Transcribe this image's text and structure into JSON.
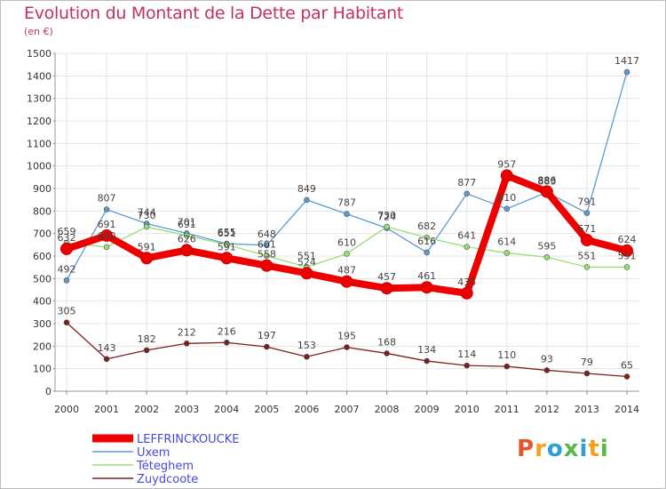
{
  "title": "Evolution du Montant de la Dette par Habitant",
  "subtitle": "(en €)",
  "logo": {
    "letters": [
      "P",
      "r",
      "o",
      "x",
      "i",
      "t",
      "i"
    ],
    "colors": [
      "#e8552a",
      "#f2a01e",
      "#2b9fd9",
      "#57b947",
      "#2b9fd9",
      "#f2a01e",
      "#57b947"
    ]
  },
  "chart_data": {
    "type": "line",
    "x": [
      "2000",
      "2001",
      "2002",
      "2003",
      "2004",
      "2005",
      "2006",
      "2007",
      "2008",
      "2009",
      "2010",
      "2011",
      "2012",
      "2013",
      "2014"
    ],
    "ylim": [
      0,
      1500
    ],
    "yticks": [
      "0",
      "100",
      "200",
      "300",
      "400",
      "500",
      "600",
      "700",
      "800",
      "900",
      "1000",
      "1100",
      "1200",
      "1300",
      "1400",
      "1500"
    ],
    "grid": true,
    "legend_position": "bottom-left",
    "series": [
      {
        "name": "Uxem",
        "color": "#5b9bd5",
        "values": [
          492,
          807,
          744,
          701,
          655,
          648,
          849,
          787,
          724,
          616,
          877,
          810,
          883,
          791,
          1417
        ],
        "labels": [
          "492",
          "807",
          "744",
          "701",
          "655",
          "648",
          "849",
          "787",
          "724",
          "616",
          "877",
          "810",
          "883",
          "791",
          "1417"
        ]
      },
      {
        "name": "Téteghem",
        "color": "#99dd77",
        "values": [
          659,
          640,
          730,
          691,
          651,
          601,
          551,
          610,
          730,
          682,
          641,
          614,
          595,
          551,
          551
        ],
        "labels": [
          "659",
          "640",
          "730",
          "691",
          "651",
          "601",
          "551",
          "610",
          "730",
          "682",
          "641",
          "614",
          "595",
          "551",
          "551"
        ]
      },
      {
        "name": "Zuydcoote",
        "color": "#7a1f1f",
        "values": [
          305,
          143,
          182,
          212,
          216,
          197,
          153,
          195,
          168,
          134,
          114,
          110,
          93,
          79,
          65
        ],
        "labels": [
          "305",
          "143",
          "182",
          "212",
          "216",
          "197",
          "153",
          "195",
          "168",
          "134",
          "114",
          "110",
          "93",
          "79",
          "65"
        ]
      },
      {
        "name": "LEFFRINCKOUCKE",
        "color": "#ee0000",
        "values": [
          632,
          691,
          591,
          626,
          591,
          558,
          524,
          487,
          457,
          461,
          435,
          957,
          886,
          671,
          624
        ],
        "labels": [
          "632",
          "691",
          "591",
          "626",
          "591",
          "558",
          "524",
          "487",
          "457",
          "461",
          "435",
          "957",
          "886",
          "671",
          "624"
        ]
      }
    ]
  }
}
